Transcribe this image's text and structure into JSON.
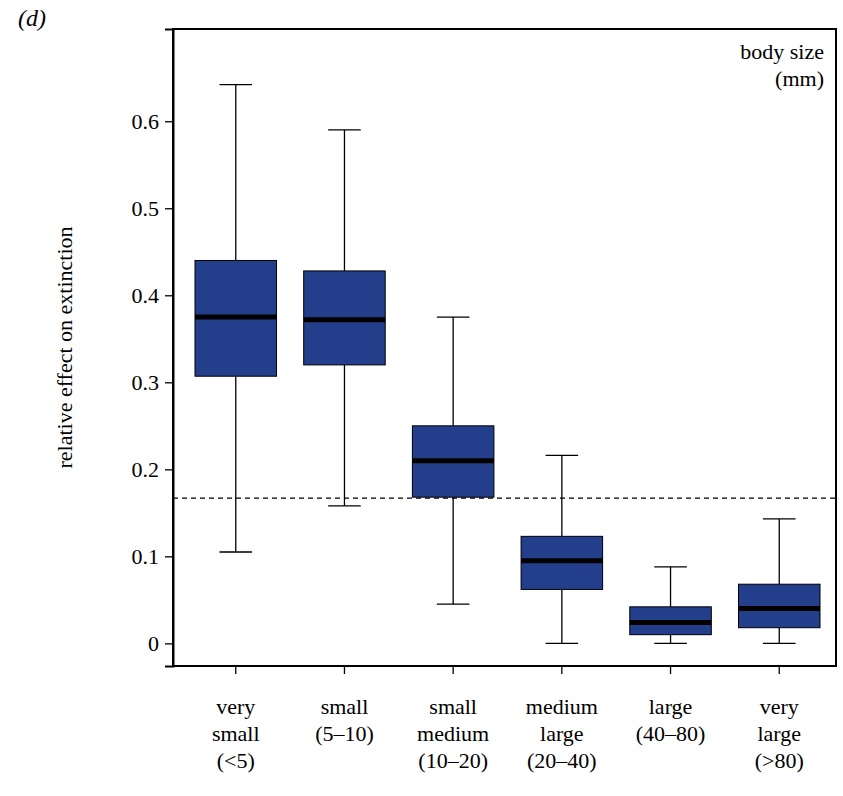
{
  "chart_data": {
    "type": "box",
    "title": "(d)",
    "y_label": "relative effect on extinction",
    "annotation": [
      "body size",
      "(mm)"
    ],
    "categories": [
      "very small (<5)",
      "small (5–10)",
      "small medium (10–20)",
      "medium large (20–40)",
      "large (40–80)",
      "very large (>80)"
    ],
    "whisker_low": [
      0.105,
      0.158,
      0.045,
      0.0,
      0.0,
      0.0
    ],
    "q1": [
      0.307,
      0.32,
      0.168,
      0.062,
      0.01,
      0.018
    ],
    "median": [
      0.375,
      0.372,
      0.21,
      0.095,
      0.024,
      0.04
    ],
    "q3": [
      0.44,
      0.428,
      0.25,
      0.123,
      0.042,
      0.068
    ],
    "whisker_high": [
      0.642,
      0.59,
      0.375,
      0.216,
      0.088,
      0.143
    ],
    "reference_line": 0.167,
    "color": "#233e8b",
    "ylim": [
      -0.026,
      0.706
    ],
    "yticks": [
      0,
      0.1,
      0.2,
      0.3,
      0.4,
      0.5,
      0.6
    ],
    "grid": false
  }
}
